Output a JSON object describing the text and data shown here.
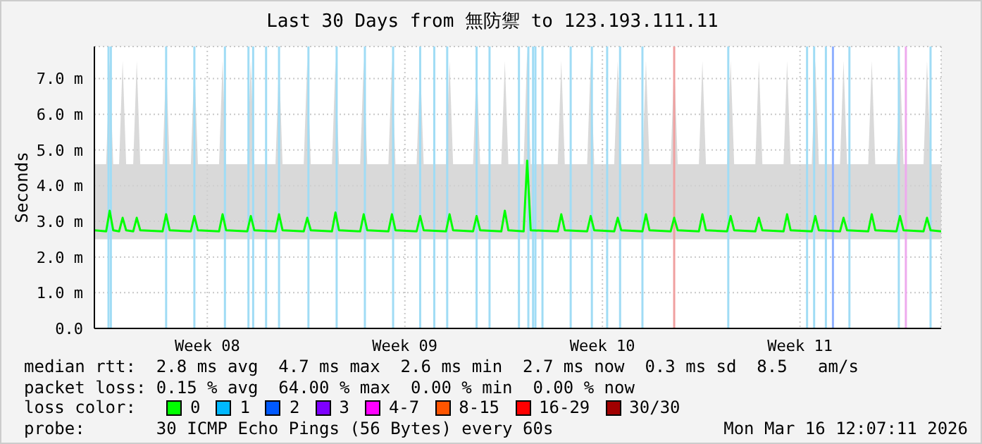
{
  "chart_data": {
    "type": "line",
    "title": "Last 30 Days from 無防禦 to 123.193.111.11",
    "ylabel": "Seconds",
    "x": [
      "2026-02-14T12:00",
      "2026-02-14T22:00",
      "2026-02-15T01:00",
      "2026-02-15T04:00",
      "2026-02-15T09:00",
      "2026-02-15T12:00",
      "2026-02-15T15:00",
      "2026-02-15T21:00",
      "2026-02-16T00:00",
      "2026-02-16T03:00",
      "2026-02-16T22:00",
      "2026-02-17T01:00",
      "2026-02-17T04:00",
      "2026-02-17T22:00",
      "2026-02-18T01:00",
      "2026-02-18T04:00",
      "2026-02-18T22:00",
      "2026-02-19T01:00",
      "2026-02-19T04:00",
      "2026-02-19T22:00",
      "2026-02-20T01:00",
      "2026-02-20T04:00",
      "2026-02-20T22:00",
      "2026-02-21T01:00",
      "2026-02-21T04:00",
      "2026-02-21T22:00",
      "2026-02-22T01:00",
      "2026-02-22T04:00",
      "2026-02-22T22:00",
      "2026-02-23T01:00",
      "2026-02-23T04:00",
      "2026-02-23T22:00",
      "2026-02-24T01:00",
      "2026-02-24T04:00",
      "2026-02-24T22:00",
      "2026-02-25T01:00",
      "2026-02-25T04:00",
      "2026-02-25T22:00",
      "2026-02-26T01:00",
      "2026-02-26T04:00",
      "2026-02-26T23:00",
      "2026-02-27T02:00",
      "2026-02-27T05:00",
      "2026-02-27T22:00",
      "2026-02-28T01:00",
      "2026-02-28T04:00",
      "2026-02-28T22:00",
      "2026-03-01T01:00",
      "2026-03-01T04:00",
      "2026-03-01T17:00",
      "2026-03-01T20:00",
      "2026-03-01T23:00",
      "2026-03-02T22:00",
      "2026-03-03T01:00",
      "2026-03-03T04:00",
      "2026-03-03T23:00",
      "2026-03-04T02:00",
      "2026-03-04T05:00",
      "2026-03-04T22:00",
      "2026-03-05T01:00",
      "2026-03-05T04:00",
      "2026-03-05T22:00",
      "2026-03-06T01:00",
      "2026-03-06T04:00",
      "2026-03-06T22:00",
      "2026-03-07T01:00",
      "2026-03-07T04:00",
      "2026-03-07T22:00",
      "2026-03-08T01:00",
      "2026-03-08T04:00",
      "2026-03-08T22:00",
      "2026-03-09T01:00",
      "2026-03-09T04:00",
      "2026-03-09T22:00",
      "2026-03-10T01:00",
      "2026-03-10T04:00",
      "2026-03-10T22:00",
      "2026-03-11T01:00",
      "2026-03-11T04:00",
      "2026-03-11T22:00",
      "2026-03-12T01:00",
      "2026-03-12T04:00",
      "2026-03-12T22:00",
      "2026-03-13T01:00",
      "2026-03-13T04:00",
      "2026-03-13T22:00",
      "2026-03-14T01:00",
      "2026-03-14T04:00",
      "2026-03-14T22:00",
      "2026-03-15T01:00",
      "2026-03-15T04:00",
      "2026-03-15T21:00",
      "2026-03-16T00:00",
      "2026-03-16T03:00",
      "2026-03-16T12:00"
    ],
    "series": [
      {
        "name": "0",
        "color": "#00ff00",
        "values": [
          2.75,
          2.72,
          3.3,
          2.75,
          2.72,
          3.1,
          2.75,
          2.72,
          3.1,
          2.75,
          2.72,
          3.2,
          2.75,
          2.72,
          3.15,
          2.75,
          2.72,
          3.2,
          2.75,
          2.72,
          3.15,
          2.75,
          2.72,
          3.2,
          2.75,
          2.72,
          3.1,
          2.75,
          2.72,
          3.25,
          2.75,
          2.72,
          3.2,
          2.75,
          2.72,
          3.2,
          2.75,
          2.72,
          3.15,
          2.75,
          2.72,
          3.2,
          2.75,
          2.72,
          3.15,
          2.75,
          2.72,
          3.3,
          2.75,
          2.72,
          4.7,
          2.75,
          2.72,
          3.2,
          2.75,
          2.72,
          3.15,
          2.75,
          2.72,
          3.1,
          2.75,
          2.72,
          3.2,
          2.75,
          2.72,
          3.1,
          2.75,
          2.72,
          3.2,
          2.75,
          2.72,
          3.15,
          2.75,
          2.72,
          3.1,
          2.75,
          2.72,
          3.2,
          2.75,
          2.72,
          3.15,
          2.75,
          2.72,
          3.1,
          2.75,
          2.72,
          3.2,
          2.75,
          2.72,
          3.15,
          2.75,
          2.72,
          3.1,
          2.75,
          2.72
        ],
        "lower": [
          2.5,
          2.5,
          2.5,
          2.5,
          2.5,
          2.5,
          2.5,
          2.5,
          2.5,
          2.5,
          2.5,
          2.5,
          2.5,
          2.5,
          2.5,
          2.5,
          2.5,
          2.5,
          2.5,
          2.5,
          2.5,
          2.5,
          2.5,
          2.5,
          2.5,
          2.5,
          2.5,
          2.5,
          2.5,
          2.5,
          2.5,
          2.5,
          2.5,
          2.5,
          2.5,
          2.5,
          2.5,
          2.5,
          2.5,
          2.5,
          2.5,
          2.5,
          2.5,
          2.5,
          2.5,
          2.5,
          2.5,
          2.5,
          2.5,
          2.5,
          2.5,
          2.5,
          2.5,
          2.5,
          2.5,
          2.5,
          2.5,
          2.5,
          2.5,
          2.5,
          2.5,
          2.5,
          2.5,
          2.5,
          2.5,
          2.5,
          2.5,
          2.5,
          2.5,
          2.5,
          2.5,
          2.5,
          2.5,
          2.5,
          2.5,
          2.5,
          2.5,
          2.5,
          2.5,
          2.5,
          2.5,
          2.5,
          2.5,
          2.5,
          2.5,
          2.5,
          2.5,
          2.5,
          2.5,
          2.5,
          2.5,
          2.5,
          2.5,
          2.5,
          2.5
        ],
        "upper": [
          4.6,
          4.6,
          7.5,
          4.6,
          4.6,
          7.5,
          4.6,
          4.6,
          7.5,
          4.6,
          4.6,
          7.5,
          4.6,
          4.6,
          7.5,
          4.6,
          4.6,
          7.5,
          4.6,
          4.6,
          7.5,
          4.6,
          4.6,
          7.5,
          4.6,
          4.6,
          7.5,
          4.6,
          4.6,
          7.5,
          4.6,
          4.6,
          7.5,
          4.6,
          4.6,
          7.5,
          4.6,
          4.6,
          7.5,
          4.6,
          4.6,
          7.5,
          4.6,
          4.6,
          7.5,
          4.6,
          4.6,
          7.5,
          4.6,
          4.6,
          7.8,
          4.6,
          4.6,
          7.5,
          4.6,
          4.6,
          7.5,
          4.6,
          4.6,
          7.5,
          4.6,
          4.6,
          7.5,
          4.6,
          4.6,
          7.5,
          4.6,
          4.6,
          7.5,
          4.6,
          4.6,
          7.5,
          4.6,
          4.6,
          7.5,
          4.6,
          4.6,
          7.5,
          4.6,
          4.6,
          7.5,
          4.6,
          4.6,
          7.5,
          4.6,
          4.6,
          7.5,
          4.6,
          4.6,
          7.5,
          4.6,
          4.6,
          7.5,
          4.6,
          4.6
        ]
      },
      {
        "name": "1",
        "color": "#00b8ff",
        "values": [
          null,
          null,
          null,
          null,
          null,
          null,
          null,
          null,
          null,
          null,
          null,
          null,
          null,
          null,
          null,
          null,
          null,
          null,
          null,
          null,
          null,
          null,
          null,
          null,
          null,
          null,
          null,
          null,
          null,
          null,
          null,
          null,
          null,
          null,
          null,
          null,
          null,
          null,
          null,
          null,
          null,
          null,
          null,
          null,
          null,
          null,
          null,
          null,
          null,
          null,
          null,
          null,
          null,
          null,
          null,
          null,
          null,
          null,
          null,
          null,
          null,
          null,
          null,
          null,
          null,
          null,
          null,
          null,
          null,
          null,
          null,
          null,
          null,
          null,
          null,
          null,
          null,
          null,
          null,
          null,
          null,
          null,
          null,
          null,
          null,
          null,
          null,
          null,
          null,
          null,
          null,
          null,
          null,
          null,
          null
        ]
      },
      {
        "name": "2",
        "color": "#0059ff",
        "values": [
          null,
          null,
          null,
          null,
          null,
          null,
          null,
          null,
          null,
          null,
          null,
          null,
          null,
          null,
          null,
          null,
          null,
          null,
          null,
          null,
          null,
          null,
          null,
          null,
          null,
          null,
          null,
          null,
          null,
          null,
          null,
          null,
          null,
          null,
          null,
          null,
          null,
          null,
          null,
          null,
          null,
          null,
          null,
          null,
          null,
          null,
          null,
          null,
          null,
          null,
          null,
          null,
          null,
          null,
          null,
          null,
          null,
          null,
          null,
          null,
          null,
          null,
          null,
          null,
          null,
          null,
          null,
          null,
          null,
          null,
          null,
          null,
          null,
          null,
          null,
          null,
          null,
          null,
          null,
          null,
          null,
          null,
          null,
          null,
          null,
          null,
          null,
          null,
          null,
          null,
          null,
          null,
          null,
          null,
          null
        ]
      },
      {
        "name": "3",
        "color": "#7e00ff",
        "values": [
          null,
          null,
          null,
          null,
          null,
          null,
          null,
          null,
          null,
          null,
          null,
          null,
          null,
          null,
          null,
          null,
          null,
          null,
          null,
          null,
          null,
          null,
          null,
          null,
          null,
          null,
          null,
          null,
          null,
          null,
          null,
          null,
          null,
          null,
          null,
          null,
          null,
          null,
          null,
          null,
          null,
          null,
          null,
          null,
          null,
          null,
          null,
          null,
          null,
          null,
          null,
          null,
          null,
          null,
          null,
          null,
          null,
          null,
          null,
          null,
          null,
          null,
          null,
          null,
          null,
          null,
          null,
          null,
          null,
          null,
          null,
          null,
          null,
          null,
          null,
          null,
          null,
          null,
          null,
          null,
          null,
          null,
          null,
          null,
          null,
          null,
          null,
          null,
          null,
          null,
          null,
          null,
          null,
          null,
          null
        ]
      },
      {
        "name": "4-7",
        "color": "#ff00ff",
        "values": [
          null,
          null,
          null,
          null,
          null,
          null,
          null,
          null,
          null,
          null,
          null,
          null,
          null,
          null,
          null,
          null,
          null,
          null,
          null,
          null,
          null,
          null,
          null,
          null,
          null,
          null,
          null,
          null,
          null,
          null,
          null,
          null,
          null,
          null,
          null,
          null,
          null,
          null,
          null,
          null,
          null,
          null,
          null,
          null,
          null,
          null,
          null,
          null,
          null,
          null,
          null,
          null,
          null,
          null,
          null,
          null,
          null,
          null,
          null,
          null,
          null,
          null,
          null,
          null,
          null,
          null,
          null,
          null,
          null,
          null,
          null,
          null,
          null,
          null,
          null,
          null,
          null,
          null,
          null,
          null,
          null,
          null,
          null,
          null,
          null,
          null,
          null,
          null,
          null,
          null,
          null,
          null,
          null,
          null,
          null
        ]
      },
      {
        "name": "8-15",
        "color": "#ff5500",
        "values": [
          null,
          null,
          null,
          null,
          null,
          null,
          null,
          null,
          null,
          null,
          null,
          null,
          null,
          null,
          null,
          null,
          null,
          null,
          null,
          null,
          null,
          null,
          null,
          null,
          null,
          null,
          null,
          null,
          null,
          null,
          null,
          null,
          null,
          null,
          null,
          null,
          null,
          null,
          null,
          null,
          null,
          null,
          null,
          null,
          null,
          null,
          null,
          null,
          null,
          null,
          null,
          null,
          null,
          null,
          null,
          null,
          null,
          null,
          null,
          null,
          null,
          null,
          null,
          null,
          null,
          null,
          null,
          null,
          null,
          null,
          null,
          null,
          null,
          null,
          null,
          null,
          null,
          null,
          null,
          null,
          null,
          null,
          null,
          null,
          null,
          null,
          null,
          null,
          null,
          null,
          null,
          null,
          null,
          null,
          null
        ]
      },
      {
        "name": "16-29",
        "color": "#ff0000",
        "values": [
          null,
          null,
          null,
          null,
          null,
          null,
          null,
          null,
          null,
          null,
          null,
          null,
          null,
          null,
          null,
          null,
          null,
          null,
          null,
          null,
          null,
          null,
          null,
          null,
          null,
          null,
          null,
          null,
          null,
          null,
          null,
          null,
          null,
          null,
          null,
          null,
          null,
          null,
          null,
          null,
          null,
          null,
          null,
          null,
          null,
          null,
          null,
          null,
          null,
          null,
          null,
          null,
          null,
          null,
          null,
          null,
          null,
          null,
          null,
          null,
          null,
          null,
          null,
          null,
          null,
          null,
          null,
          null,
          null,
          null,
          null,
          null,
          null,
          null,
          null,
          null,
          null,
          null,
          null,
          null,
          null,
          null,
          null,
          null,
          null,
          null,
          null,
          null,
          null,
          null,
          null,
          null,
          null,
          null,
          null
        ]
      },
      {
        "name": "30/30",
        "color": "#a10000",
        "values": [
          null,
          null,
          null,
          null,
          null,
          null,
          null,
          null,
          null,
          null,
          null,
          null,
          null,
          null,
          null,
          null,
          null,
          null,
          null,
          null,
          null,
          null,
          null,
          null,
          null,
          null,
          null,
          null,
          null,
          null,
          null,
          null,
          null,
          null,
          null,
          null,
          null,
          null,
          null,
          null,
          null,
          null,
          null,
          null,
          null,
          null,
          null,
          null,
          null,
          null,
          null,
          null,
          null,
          null,
          null,
          null,
          null,
          null,
          null,
          null,
          null,
          null,
          null,
          null,
          null,
          null,
          null,
          null,
          null,
          null,
          null,
          null,
          null,
          null,
          null,
          null,
          null,
          null,
          null,
          null,
          null,
          null,
          null,
          null,
          null,
          null,
          null,
          null,
          null,
          null,
          null,
          null,
          null,
          null,
          null
        ]
      }
    ],
    "xlim": [
      "2026-02-14T12:00",
      "2026-03-16T12:00"
    ],
    "xticks": [
      {
        "value": "2026-02-18T12:00",
        "label": "Week 08"
      },
      {
        "value": "2026-02-25T12:00",
        "label": "Week 09"
      },
      {
        "value": "2026-03-04T12:00",
        "label": "Week 10"
      },
      {
        "value": "2026-03-11T12:00",
        "label": "Week 11"
      }
    ],
    "ylim": [
      0,
      7.9
    ],
    "yticks": [
      {
        "value": 0,
        "label": "0.0"
      },
      {
        "value": 1,
        "label": "1.0 m"
      },
      {
        "value": 2,
        "label": "2.0 m"
      },
      {
        "value": 3,
        "label": "3.0 m"
      },
      {
        "value": 4,
        "label": "4.0 m"
      },
      {
        "value": 5,
        "label": "5.0 m"
      },
      {
        "value": 6,
        "label": "6.0 m"
      },
      {
        "value": 7,
        "label": "7.0 m"
      }
    ],
    "grid": true,
    "marker": "none",
    "line_style": "solid",
    "legend": "bottom",
    "legend_title": "loss color:",
    "ref_lines": [
      {
        "axis": "x",
        "value": "2026-02-15T00:00",
        "color": "#a0dcf5"
      },
      {
        "axis": "x",
        "value": "2026-02-15T02:00",
        "color": "#a0dcf5"
      },
      {
        "axis": "x",
        "value": "2026-02-17T01:00",
        "color": "#a0dcf5"
      },
      {
        "axis": "x",
        "value": "2026-02-18T01:00",
        "color": "#a0dcf5"
      },
      {
        "axis": "x",
        "value": "2026-02-19T03:00",
        "color": "#a0dcf5"
      },
      {
        "axis": "x",
        "value": "2026-02-19T23:00",
        "color": "#a0dcf5"
      },
      {
        "axis": "x",
        "value": "2026-02-20T03:00",
        "color": "#a0dcf5"
      },
      {
        "axis": "x",
        "value": "2026-02-20T14:00",
        "color": "#a0dcf5"
      },
      {
        "axis": "x",
        "value": "2026-02-21T01:00",
        "color": "#a0dcf5"
      },
      {
        "axis": "x",
        "value": "2026-02-22T02:00",
        "color": "#a0dcf5"
      },
      {
        "axis": "x",
        "value": "2026-02-23T02:00",
        "color": "#a0dcf5"
      },
      {
        "axis": "x",
        "value": "2026-02-24T02:00",
        "color": "#a0dcf5"
      },
      {
        "axis": "x",
        "value": "2026-02-25T02:00",
        "color": "#a0dcf5"
      },
      {
        "axis": "x",
        "value": "2026-02-26T01:00",
        "color": "#a0dcf5"
      },
      {
        "axis": "x",
        "value": "2026-02-26T13:00",
        "color": "#a0dcf5"
      },
      {
        "axis": "x",
        "value": "2026-02-27T00:00",
        "color": "#a0dcf5"
      },
      {
        "axis": "x",
        "value": "2026-02-28T01:00",
        "color": "#a0dcf5"
      },
      {
        "axis": "x",
        "value": "2026-02-28T12:00",
        "color": "#a0dcf5"
      },
      {
        "axis": "x",
        "value": "2026-03-01T13:00",
        "color": "#a0dcf5"
      },
      {
        "axis": "x",
        "value": "2026-03-01T21:00",
        "color": "#a0dcf5"
      },
      {
        "axis": "x",
        "value": "2026-03-02T01:00",
        "color": "#a0dcf5"
      },
      {
        "axis": "x",
        "value": "2026-03-02T03:00",
        "color": "#a0dcf5"
      },
      {
        "axis": "x",
        "value": "2026-03-02T09:00",
        "color": "#a0dcf5"
      },
      {
        "axis": "x",
        "value": "2026-03-03T09:00",
        "color": "#a0dcf5"
      },
      {
        "axis": "x",
        "value": "2026-03-04T03:00",
        "color": "#a0dcf5"
      },
      {
        "axis": "x",
        "value": "2026-03-04T16:00",
        "color": "#a0dcf5"
      },
      {
        "axis": "x",
        "value": "2026-03-05T03:00",
        "color": "#a0dcf5"
      },
      {
        "axis": "x",
        "value": "2026-03-05T22:00",
        "color": "#a0dcf5"
      },
      {
        "axis": "x",
        "value": "2026-03-07T01:00",
        "color": "#f0a0a0"
      },
      {
        "axis": "x",
        "value": "2026-03-08T23:00",
        "color": "#a0dcf5"
      },
      {
        "axis": "x",
        "value": "2026-03-11T18:00",
        "color": "#a0dcf5"
      },
      {
        "axis": "x",
        "value": "2026-03-12T00:00",
        "color": "#a0dcf5"
      },
      {
        "axis": "x",
        "value": "2026-03-12T10:00",
        "color": "#a0dcf5"
      },
      {
        "axis": "x",
        "value": "2026-03-12T16:00",
        "color": "#8fb0ff"
      },
      {
        "axis": "x",
        "value": "2026-03-13T06:00",
        "color": "#a0dcf5"
      },
      {
        "axis": "x",
        "value": "2026-03-15T00:00",
        "color": "#a0dcf5"
      },
      {
        "axis": "x",
        "value": "2026-03-15T06:00",
        "color": "#eeaaee"
      },
      {
        "axis": "x",
        "value": "2026-03-16T03:00",
        "color": "#a0dcf5"
      }
    ],
    "annotations": [
      "median rtt:  2.8 ms avg  4.7 ms max  2.6 ms min  2.7 ms now  0.3 ms sd  8.5   am/s",
      "packet loss: 0.15 % avg  64.00 % max  0.00 % min  0.00 % now",
      "probe:       30 ICMP Echo Pings (56 Bytes) every 60s",
      "Mon Mar 16 12:07:11 2026"
    ]
  }
}
